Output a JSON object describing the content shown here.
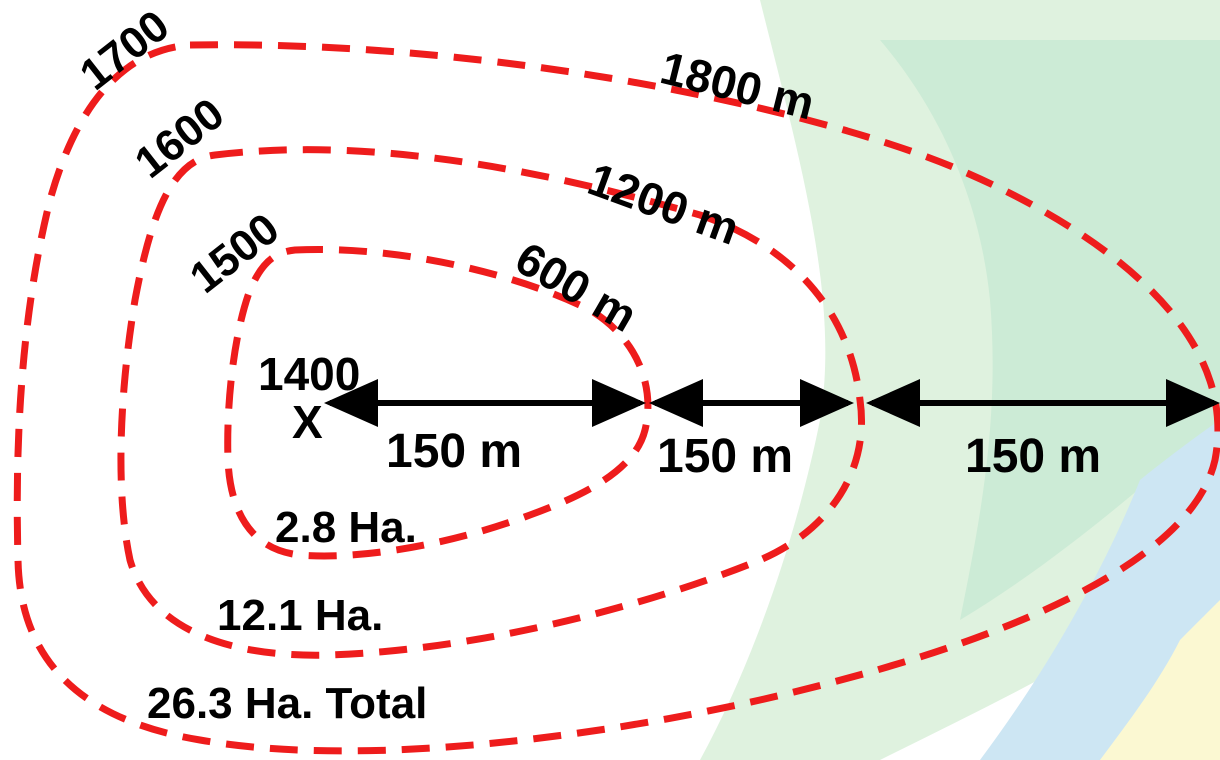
{
  "colors": {
    "contour": "#ee1c1c",
    "text": "#000000",
    "bg_green": "#dff2df",
    "bg_green_dark": "#c7e8d3",
    "bg_blue": "#cde6f3",
    "bg_yellow": "#fbf8d2"
  },
  "origin_marker": "X",
  "origin_label": "1400",
  "contours": [
    {
      "id": "c1500",
      "time": "1500",
      "distance": "600 m",
      "area": "2.8 Ha."
    },
    {
      "id": "c1600",
      "time": "1600",
      "distance": "1200 m",
      "area": "12.1 Ha."
    },
    {
      "id": "c1700",
      "time": "1700",
      "distance": "1800 m",
      "area": "26.3 Ha. Total"
    }
  ],
  "segments": [
    {
      "label": "150 m"
    },
    {
      "label": "150 m"
    },
    {
      "label": "150 m"
    }
  ]
}
